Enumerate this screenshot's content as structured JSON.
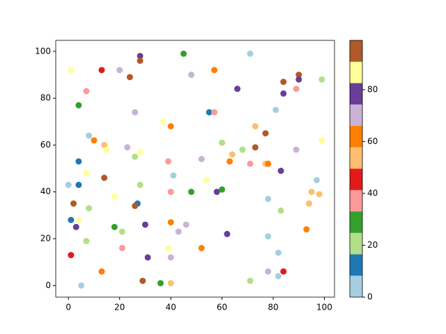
{
  "chart_data": {
    "type": "scatter",
    "x": [
      1,
      13,
      20,
      24,
      28,
      28,
      45,
      48,
      57,
      71,
      99,
      90,
      90,
      84,
      89,
      84,
      66,
      7,
      4,
      26,
      55,
      57,
      81,
      37,
      40,
      73,
      77,
      8,
      10,
      14,
      15,
      23,
      28,
      26,
      60,
      68,
      73,
      89,
      99,
      64,
      63,
      71,
      77,
      78,
      4,
      39,
      52,
      7,
      83,
      41,
      14,
      54,
      97,
      0,
      4,
      28,
      18,
      40,
      48,
      58,
      60,
      95,
      98,
      78,
      2,
      27,
      26,
      94,
      8,
      83,
      1,
      4,
      3,
      18,
      21,
      30,
      40,
      46,
      43,
      62,
      93,
      78,
      7,
      21,
      39,
      52,
      82,
      1,
      31,
      40,
      13,
      78,
      84,
      82,
      29,
      71,
      36,
      40,
      5
    ],
    "y": [
      92,
      92,
      92,
      89,
      98,
      96,
      99,
      90,
      92,
      99,
      88,
      90,
      88,
      87,
      84,
      82,
      84,
      83,
      77,
      74,
      74,
      74,
      75,
      70,
      68,
      68,
      65,
      64,
      62,
      60,
      58,
      59,
      57,
      55,
      61,
      58,
      59,
      58,
      62,
      56,
      53,
      52,
      52,
      52,
      53,
      53,
      54,
      48,
      49,
      47,
      46,
      45,
      45,
      43,
      43,
      43,
      38,
      40,
      40,
      40,
      41,
      40,
      39,
      37,
      35,
      35,
      34,
      35,
      33,
      32,
      28,
      28,
      25,
      25,
      23,
      26,
      27,
      26,
      23,
      22,
      24,
      21,
      19,
      16,
      16,
      16,
      14,
      13,
      12,
      12,
      6,
      6,
      6,
      4,
      2,
      2,
      1,
      1,
      0
    ],
    "c": [
      87,
      45,
      70,
      95,
      78,
      95,
      29,
      70,
      62,
      4,
      21,
      95,
      78,
      95,
      37,
      78,
      78,
      37,
      29,
      70,
      12,
      37,
      4,
      87,
      62,
      54,
      95,
      4,
      62,
      54,
      87,
      70,
      87,
      21,
      21,
      21,
      95,
      70,
      87,
      54,
      62,
      37,
      54,
      62,
      12,
      37,
      70,
      87,
      78,
      4,
      95,
      87,
      4,
      4,
      12,
      21,
      87,
      37,
      29,
      78,
      29,
      54,
      54,
      4,
      95,
      12,
      95,
      54,
      21,
      21,
      12,
      87,
      78,
      29,
      21,
      78,
      62,
      70,
      70,
      78,
      62,
      4,
      21,
      37,
      87,
      62,
      4,
      45,
      78,
      70,
      62,
      70,
      45,
      4,
      95,
      21,
      29,
      54,
      4
    ],
    "colormap": [
      "#a6cee3",
      "#1f78b4",
      "#b2df8a",
      "#33a02c",
      "#fb9a99",
      "#e31a1c",
      "#fdbf6f",
      "#ff7f00",
      "#cab2d6",
      "#6a3d9a",
      "#ffff99",
      "#b15928"
    ],
    "clim": [
      0,
      99
    ],
    "cticks": [
      0,
      20,
      40,
      60,
      80
    ],
    "xlim": [
      -4.95,
      103.95
    ],
    "xticks": [
      0,
      20,
      40,
      60,
      80,
      100
    ],
    "ylim": [
      -4.95,
      104.7
    ],
    "yticks": [
      0,
      20,
      40,
      60,
      80,
      100
    ]
  }
}
